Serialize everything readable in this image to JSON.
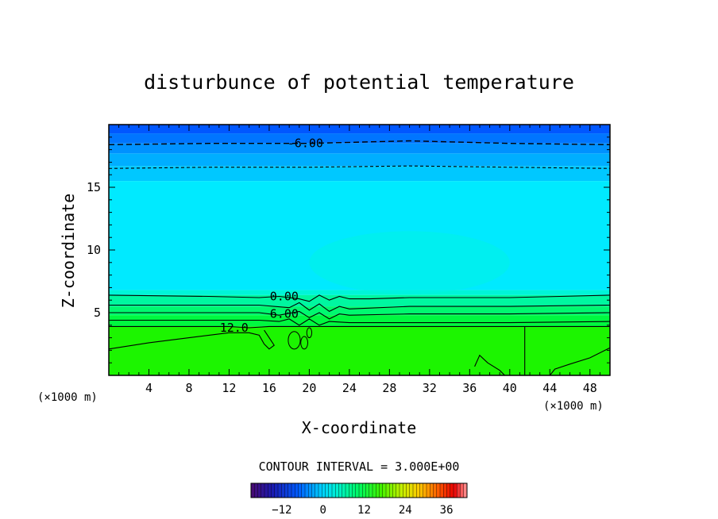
{
  "chart_data": {
    "type": "contour",
    "title": "disturbunce of potential temperature",
    "xlabel": "X-coordinate",
    "ylabel": "Z-coordinate",
    "x_unit": "(×1000 m)",
    "xlim": [
      0,
      50
    ],
    "ylim": [
      0,
      20
    ],
    "xticks": [
      4,
      8,
      12,
      16,
      20,
      24,
      28,
      32,
      36,
      40,
      44,
      48
    ],
    "yticks": [
      5,
      10,
      15
    ],
    "contour_interval_text": "CONTOUR INTERVAL = 3.000E+00",
    "contour_interval": 3.0,
    "contour_labels": [
      {
        "text": "-6.00",
        "value": -6.0
      },
      {
        "text": "0.00",
        "value": 0.0
      },
      {
        "text": "6.00",
        "value": 6.0
      },
      {
        "text": "12.0",
        "value": 12.0
      }
    ],
    "colorbar": {
      "range": [
        -21,
        42
      ],
      "ticks": [
        -12,
        0,
        12,
        24,
        36
      ],
      "tick_labels": [
        "−12",
        "0",
        "12",
        "24",
        "36"
      ]
    },
    "fill_layers": [
      {
        "z_bottom": 19.3,
        "z_top": 20,
        "value": -9,
        "color": "#0057ff"
      },
      {
        "z_bottom": 18.5,
        "z_top": 19.3,
        "value": -7,
        "color": "#0075ff"
      },
      {
        "z_bottom": 17.7,
        "z_top": 18.5,
        "value": -5,
        "color": "#0091ff"
      },
      {
        "z_bottom": 16.7,
        "z_top": 17.7,
        "value": -3,
        "color": "#00aeff"
      },
      {
        "z_bottom": 15.5,
        "z_top": 16.7,
        "value": -1.5,
        "color": "#00c8ff"
      },
      {
        "z_bottom": 6.8,
        "z_top": 15.5,
        "value": 0.5,
        "color": "#00eaff"
      },
      {
        "z_bottom": 6.4,
        "z_top": 6.8,
        "value": 2,
        "color": "#00f5d8"
      },
      {
        "z_bottom": 5.5,
        "z_top": 6.4,
        "value": 4,
        "color": "#00f7a0"
      },
      {
        "z_bottom": 4.8,
        "z_top": 5.5,
        "value": 7,
        "color": "#00f870"
      },
      {
        "z_bottom": 3.9,
        "z_top": 4.8,
        "value": 10,
        "color": "#00f840"
      },
      {
        "z_bottom": 0,
        "z_top": 3.9,
        "value": 13,
        "color": "#1cf500"
      }
    ],
    "contour_lines": [
      {
        "value": -6.0,
        "style": "dashed",
        "points": [
          [
            0,
            18.4
          ],
          [
            10,
            18.5
          ],
          [
            20,
            18.5
          ],
          [
            25,
            18.6
          ],
          [
            30,
            18.7
          ],
          [
            40,
            18.5
          ],
          [
            50,
            18.4
          ]
        ]
      },
      {
        "value": -3.0,
        "style": "dashed",
        "points": [
          [
            0,
            16.5
          ],
          [
            10,
            16.6
          ],
          [
            20,
            16.6
          ],
          [
            30,
            16.7
          ],
          [
            40,
            16.6
          ],
          [
            50,
            16.5
          ]
        ]
      },
      {
        "value": 0.0,
        "style": "solid",
        "points": [
          [
            0,
            6.4
          ],
          [
            10,
            6.3
          ],
          [
            15,
            6.2
          ],
          [
            17,
            6.3
          ],
          [
            19,
            6.1
          ],
          [
            20,
            5.9
          ],
          [
            21,
            6.4
          ],
          [
            22,
            6.0
          ],
          [
            23,
            6.3
          ],
          [
            24,
            6.1
          ],
          [
            26,
            6.1
          ],
          [
            30,
            6.2
          ],
          [
            40,
            6.2
          ],
          [
            45,
            6.3
          ],
          [
            50,
            6.4
          ]
        ]
      },
      {
        "value": 3.0,
        "style": "solid",
        "points": [
          [
            0,
            5.6
          ],
          [
            15,
            5.6
          ],
          [
            18,
            5.4
          ],
          [
            19,
            5.8
          ],
          [
            20,
            5.2
          ],
          [
            21,
            5.7
          ],
          [
            22,
            5.1
          ],
          [
            23,
            5.5
          ],
          [
            24,
            5.3
          ],
          [
            30,
            5.5
          ],
          [
            40,
            5.5
          ],
          [
            50,
            5.6
          ]
        ]
      },
      {
        "value": 6.0,
        "style": "solid",
        "points": [
          [
            0,
            5.0
          ],
          [
            15,
            5.0
          ],
          [
            17,
            4.8
          ],
          [
            19,
            5.1
          ],
          [
            20,
            4.6
          ],
          [
            21,
            5.0
          ],
          [
            22,
            4.5
          ],
          [
            23,
            4.9
          ],
          [
            24,
            4.8
          ],
          [
            30,
            4.9
          ],
          [
            40,
            4.9
          ],
          [
            50,
            5.0
          ]
        ]
      },
      {
        "value": 9.0,
        "style": "solid",
        "points": [
          [
            0,
            4.4
          ],
          [
            15,
            4.4
          ],
          [
            17,
            4.3
          ],
          [
            18,
            4.5
          ],
          [
            19,
            4.0
          ],
          [
            20,
            4.5
          ],
          [
            21,
            4.0
          ],
          [
            22,
            4.3
          ],
          [
            24,
            4.2
          ],
          [
            30,
            4.2
          ],
          [
            40,
            4.2
          ],
          [
            50,
            4.3
          ]
        ]
      },
      {
        "value": 12.0,
        "style": "solid",
        "points": [
          [
            0,
            3.9
          ],
          [
            10,
            3.9
          ],
          [
            12,
            3.9
          ],
          [
            14,
            3.8
          ],
          [
            16,
            3.9
          ],
          [
            18,
            3.9
          ],
          [
            30,
            3.9
          ],
          [
            40,
            3.9
          ],
          [
            41.5,
            3.9
          ],
          [
            41.5,
            0
          ],
          [
            41.5,
            3.9
          ],
          [
            50,
            3.9
          ]
        ]
      },
      {
        "value": 12.0,
        "style": "solid",
        "points": [
          [
            0,
            2.1
          ],
          [
            4,
            2.6
          ],
          [
            8,
            3.0
          ],
          [
            12,
            3.4
          ],
          [
            14,
            3.4
          ],
          [
            15,
            3.2
          ],
          [
            15.5,
            2.5
          ],
          [
            16,
            2.1
          ],
          [
            16.5,
            2.4
          ],
          [
            16,
            3.0
          ],
          [
            15.5,
            3.6
          ]
        ]
      },
      {
        "value": 12.0,
        "style": "solid",
        "points": [
          [
            36.5,
            0.7
          ],
          [
            37,
            1.6
          ],
          [
            37.8,
            1.0
          ],
          [
            39,
            0.4
          ],
          [
            39.5,
            0
          ]
        ]
      },
      {
        "value": 12.0,
        "style": "solid",
        "points": [
          [
            44,
            0
          ],
          [
            44.5,
            0.5
          ],
          [
            46,
            0.9
          ],
          [
            48,
            1.4
          ],
          [
            50,
            2.2
          ]
        ]
      }
    ]
  }
}
